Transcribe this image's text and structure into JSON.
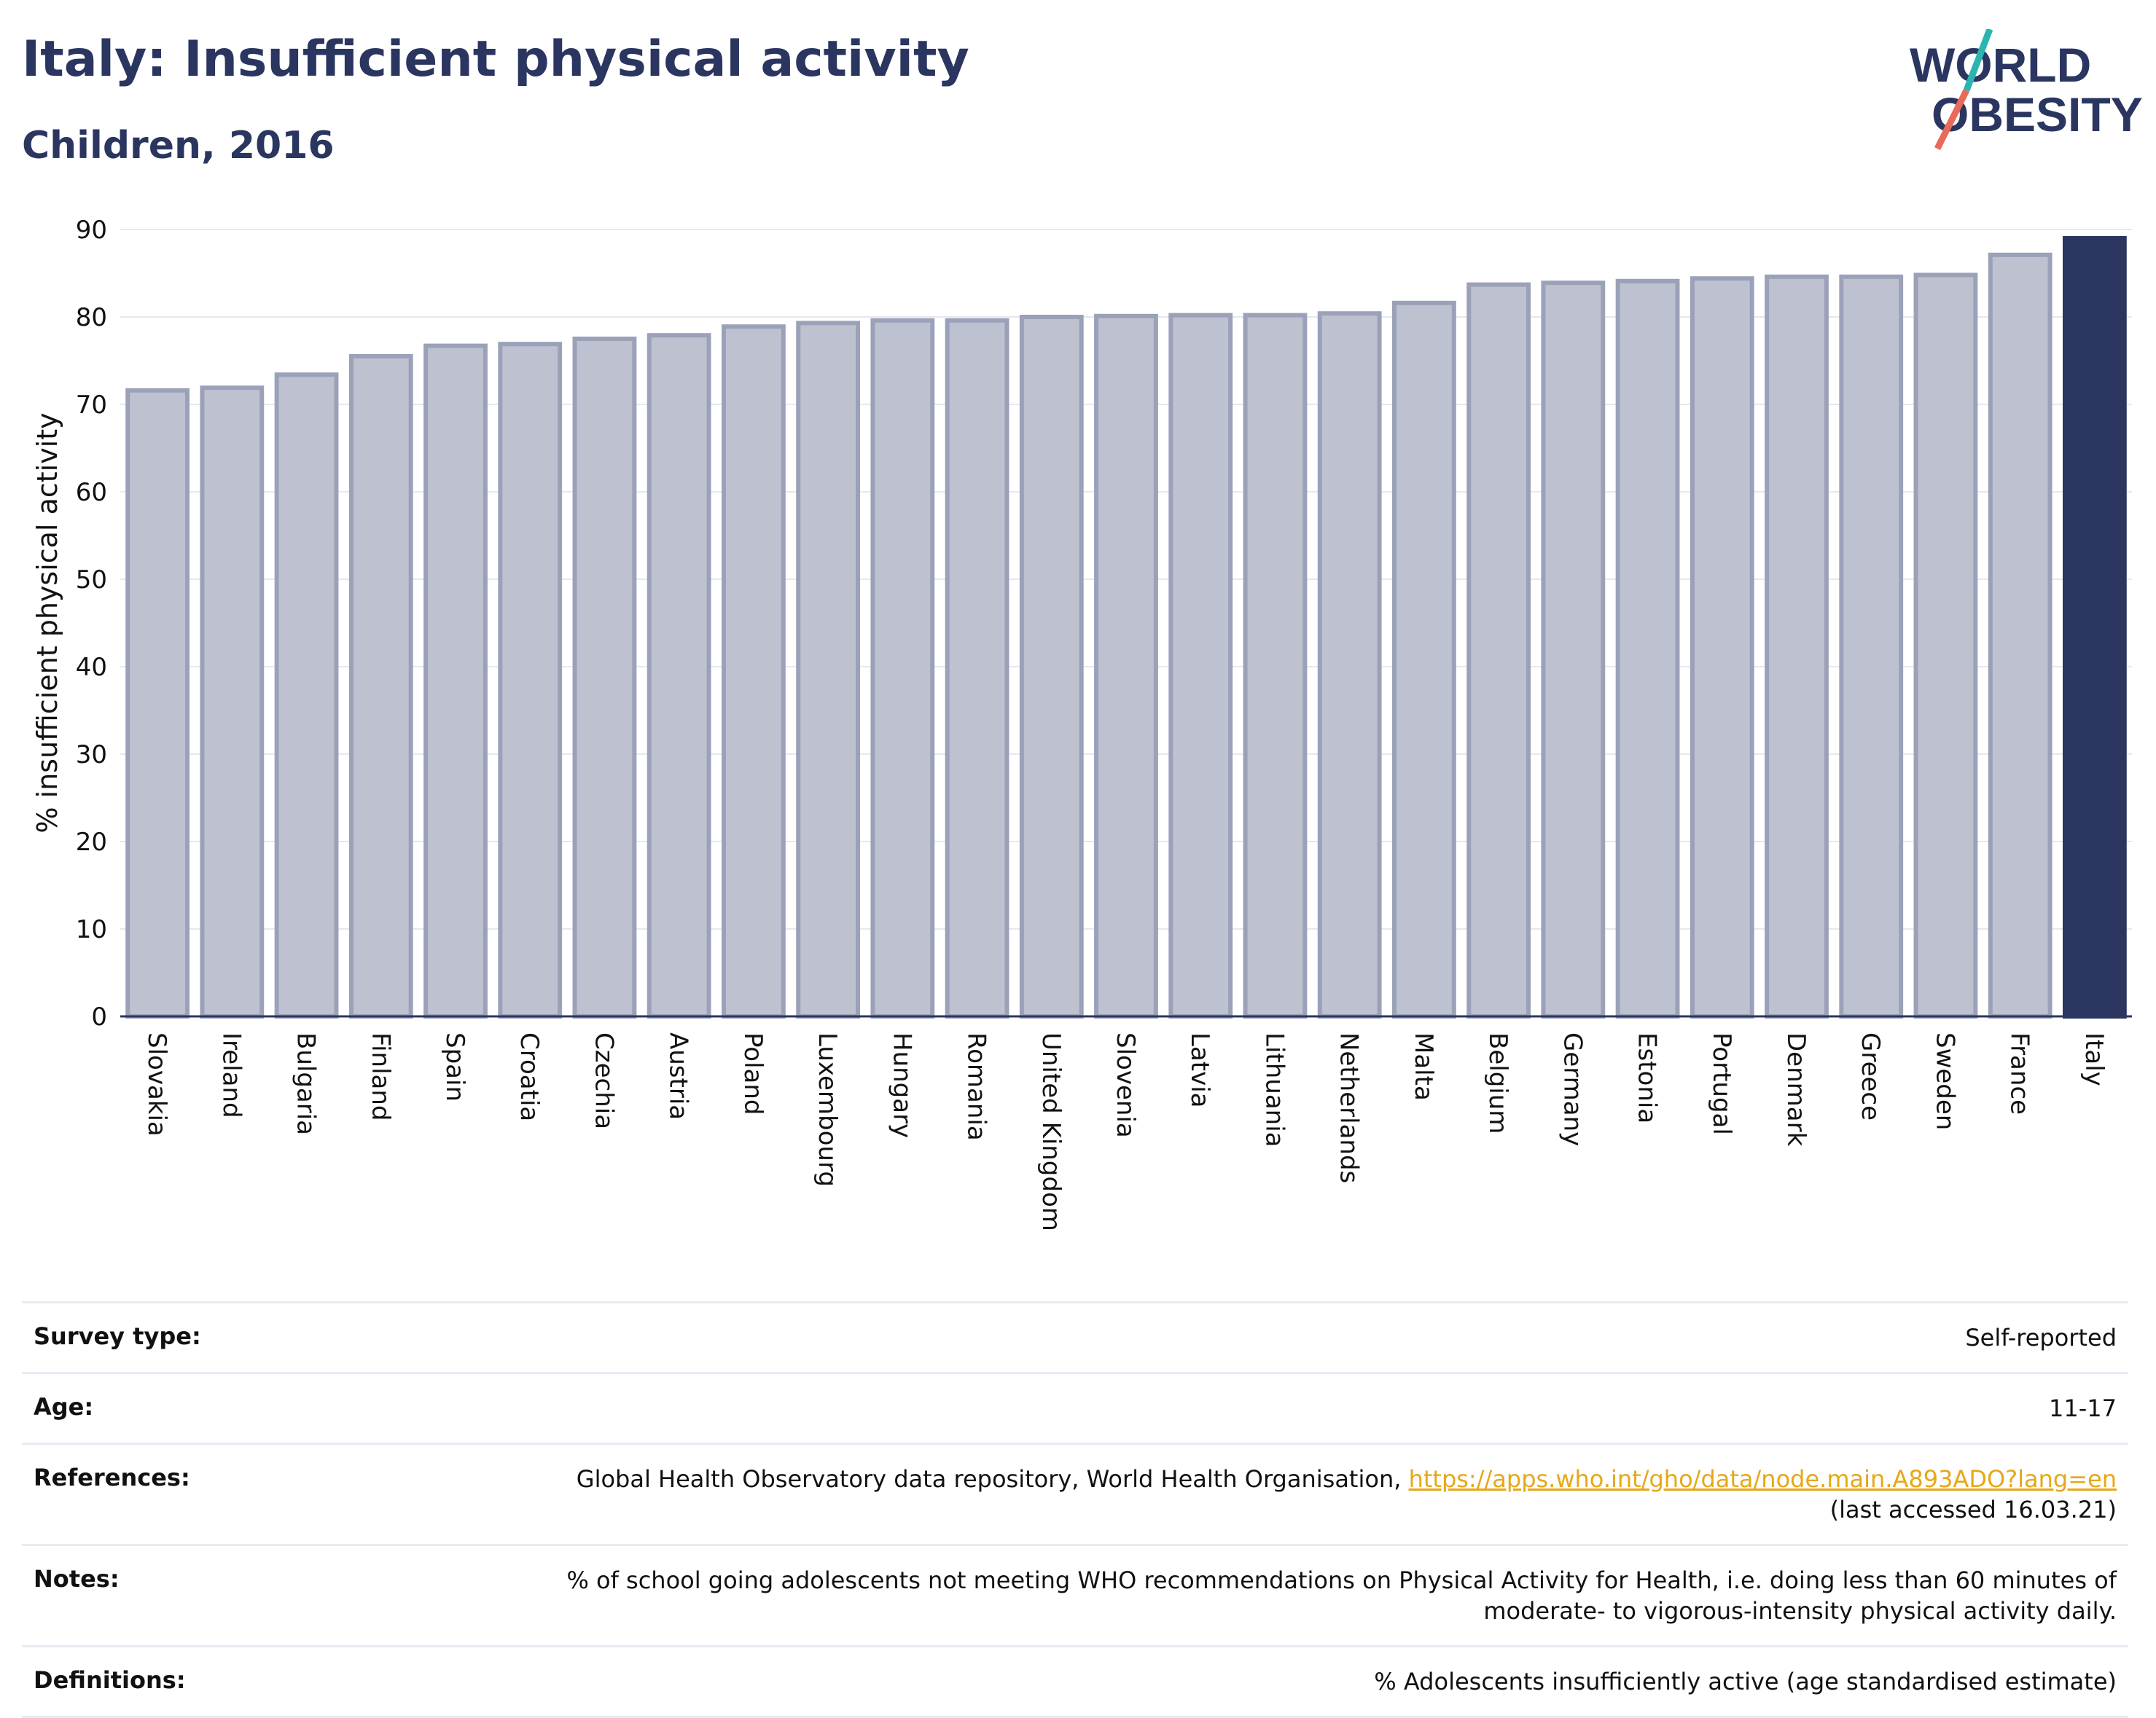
{
  "header": {
    "title": "Italy: Insufficient physical activity",
    "subtitle": "Children, 2016",
    "logo_line1": "WORLD",
    "logo_line2": "OBESITY"
  },
  "colors": {
    "highlight": "#2a3560",
    "bar_fill": "#bec2d0",
    "bar_stroke": "#9aa1b8",
    "logo_teal": "#2bb5b0",
    "logo_coral": "#e86b5a",
    "link": "#e6a817"
  },
  "chart_data": {
    "type": "bar",
    "categories": [
      "Slovakia",
      "Ireland",
      "Bulgaria",
      "Finland",
      "Spain",
      "Croatia",
      "Czechia",
      "Austria",
      "Poland",
      "Luxembourg",
      "Hungary",
      "Romania",
      "United Kingdom",
      "Slovenia",
      "Latvia",
      "Lithuania",
      "Netherlands",
      "Malta",
      "Belgium",
      "Germany",
      "Estonia",
      "Portugal",
      "Denmark",
      "Greece",
      "Sweden",
      "France",
      "Italy"
    ],
    "values": [
      71.6,
      71.9,
      73.4,
      75.5,
      76.7,
      76.9,
      77.5,
      77.9,
      78.9,
      79.3,
      79.6,
      79.6,
      80.0,
      80.1,
      80.2,
      80.2,
      80.4,
      81.6,
      83.7,
      83.9,
      84.1,
      84.4,
      84.6,
      84.6,
      84.8,
      87.1,
      89.0
    ],
    "highlight": "Italy",
    "ylabel": "% insufficient physical activity",
    "ylim": [
      0,
      90
    ],
    "yticks": [
      0,
      10,
      20,
      30,
      40,
      50,
      60,
      70,
      80,
      90
    ],
    "grid": true
  },
  "meta": {
    "survey_type_label": "Survey type:",
    "survey_type_value": "Self-reported",
    "age_label": "Age:",
    "age_value": "11-17",
    "references_label": "References:",
    "references_text": "Global Health Observatory data repository, World Health Organisation,",
    "references_link": "https://apps.who.int/gho/data/node.main.A893ADO?lang=en",
    "references_accessed": "(last accessed 16.03.21)",
    "notes_label": "Notes:",
    "notes_line1": "% of school going adolescents not meeting WHO recommendations on Physical Activity for Health, i.e. doing less than 60 minutes of",
    "notes_line2": "moderate- to vigorous-intensity physical activity daily.",
    "definitions_label": "Definitions:",
    "definitions_value": "% Adolescents insufficiently active (age standardised estimate)"
  }
}
